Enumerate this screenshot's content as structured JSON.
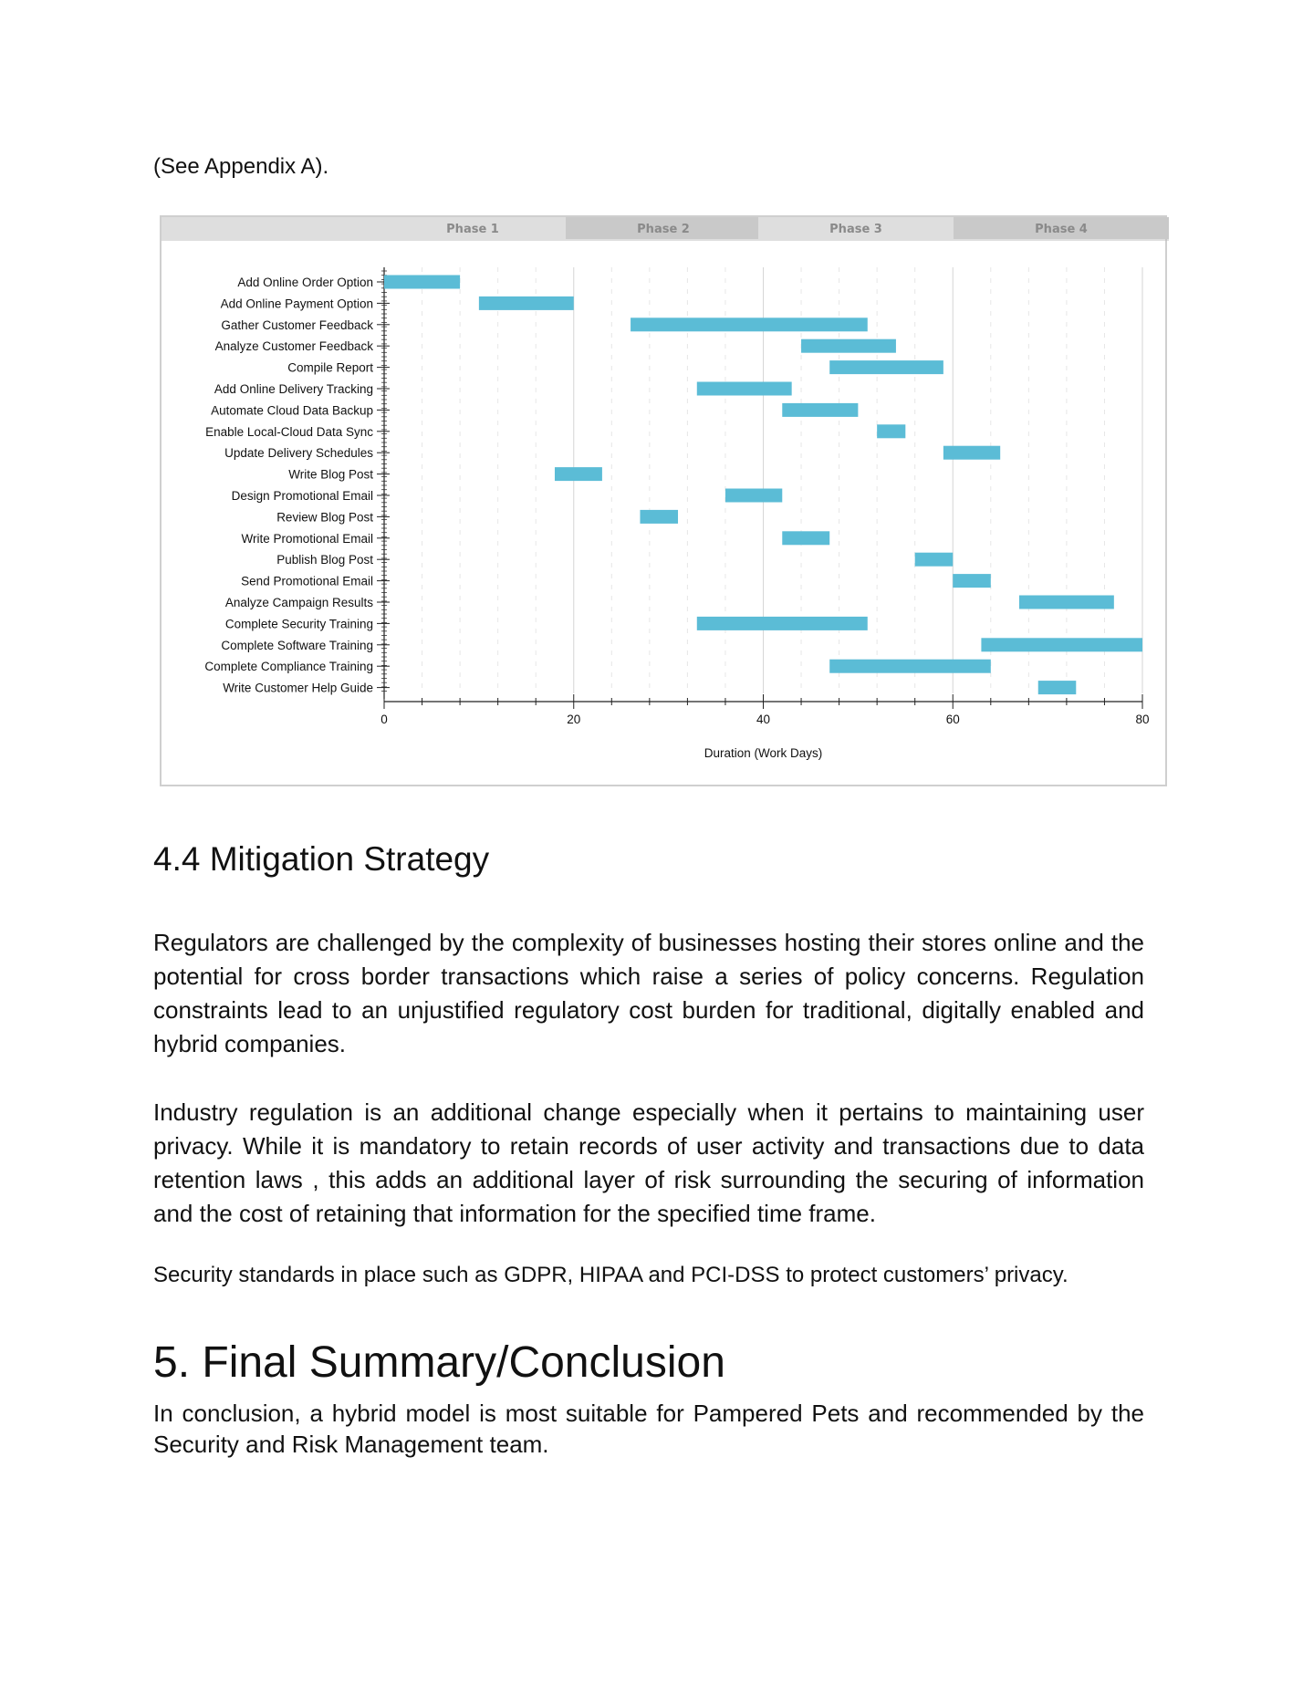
{
  "intro": "(See Appendix A).",
  "chart_data": {
    "type": "gantt",
    "phases": [
      "Phase 1",
      "Phase 2",
      "Phase 3",
      "Phase 4"
    ],
    "tasks": [
      {
        "name": "Add Online Order Option",
        "start": 0,
        "end": 8
      },
      {
        "name": "Add Online Payment Option",
        "start": 10,
        "end": 20
      },
      {
        "name": "Gather Customer Feedback",
        "start": 26,
        "end": 51
      },
      {
        "name": "Analyze Customer Feedback",
        "start": 44,
        "end": 54
      },
      {
        "name": "Compile Report",
        "start": 47,
        "end": 59
      },
      {
        "name": "Add Online Delivery Tracking",
        "start": 33,
        "end": 43
      },
      {
        "name": "Automate Cloud Data Backup",
        "start": 42,
        "end": 50
      },
      {
        "name": "Enable Local-Cloud Data Sync",
        "start": 52,
        "end": 55
      },
      {
        "name": "Update Delivery Schedules",
        "start": 59,
        "end": 65
      },
      {
        "name": "Write Blog Post",
        "start": 18,
        "end": 23
      },
      {
        "name": "Design Promotional Email",
        "start": 36,
        "end": 42
      },
      {
        "name": "Review Blog Post",
        "start": 27,
        "end": 31
      },
      {
        "name": "Write Promotional Email",
        "start": 42,
        "end": 47
      },
      {
        "name": "Publish Blog Post",
        "start": 56,
        "end": 60
      },
      {
        "name": "Send Promotional Email",
        "start": 60,
        "end": 64
      },
      {
        "name": "Analyze Campaign Results",
        "start": 67,
        "end": 77
      },
      {
        "name": "Complete Security Training",
        "start": 33,
        "end": 51
      },
      {
        "name": "Complete Software Training",
        "start": 63,
        "end": 80
      },
      {
        "name": "Complete Compliance Training",
        "start": 47,
        "end": 64
      },
      {
        "name": "Write Customer Help Guide",
        "start": 69,
        "end": 73
      }
    ],
    "xticks": [
      0,
      20,
      40,
      60,
      80
    ],
    "xlim": [
      0,
      80
    ],
    "xlabel": "Duration (Work Days)",
    "ylabel": "",
    "title": "",
    "grid": true,
    "bar_color": "#5bbcd6"
  },
  "section_44": {
    "heading": "4.4 Mitigation Strategy",
    "para1": "Regulators are challenged by the complexity of businesses hosting their stores online and the potential for cross border transactions which raise a series of policy concerns. Regulation constraints lead to an unjustified regulatory cost burden for traditional, digitally enabled and hybrid companies.",
    "para2": "Industry regulation is an additional change especially when it pertains to maintaining user privacy. While it is mandatory to retain records of user activity and transactions due to data retention laws , this adds an additional layer of risk surrounding the securing of information and the cost of retaining that information for the specified time frame.",
    "para3": "Security standards in place such as GDPR, HIPAA and PCI-DSS to protect customers’ privacy."
  },
  "section_5": {
    "heading": "5. Final Summary/Conclusion",
    "para1": "In conclusion, a hybrid model is most suitable for Pampered Pets and recommended by the Security and Risk Management team."
  }
}
